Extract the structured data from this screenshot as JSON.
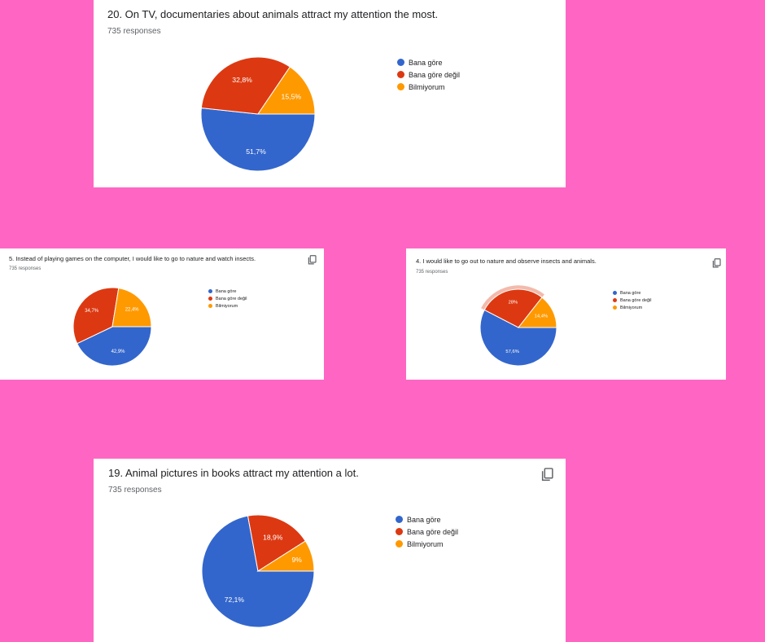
{
  "colors": {
    "background": "#ff66c4",
    "card": "#ffffff",
    "series": [
      "#3366cc",
      "#dc3912",
      "#ff9900"
    ]
  },
  "icons": {
    "copy": "copy-icon"
  },
  "chart_data": [
    {
      "type": "pie",
      "title": "20. On TV, documentaries about animals attract my attention the most.",
      "responses": "735 responses",
      "has_copy_icon": false,
      "categories": [
        "Bana göre",
        "Bana göre değil",
        "Bilmiyorum"
      ],
      "values": [
        51.7,
        32.8,
        15.5
      ],
      "labels": [
        "51,7%",
        "32,8%",
        "15,5%"
      ],
      "legend": "right"
    },
    {
      "type": "pie",
      "title": "5. Instead of playing games on the computer, I would like to go to nature and watch insects.",
      "responses": "735 responses",
      "has_copy_icon": true,
      "categories": [
        "Bana göre",
        "Bana göre değil",
        "Bilmiyorum"
      ],
      "values": [
        42.9,
        34.7,
        22.4
      ],
      "labels": [
        "42,9%",
        "34,7%",
        "22,4%"
      ],
      "legend": "right"
    },
    {
      "type": "pie",
      "title": "4. I would like to go out to nature and observe insects and animals.",
      "responses": "735 responses",
      "has_copy_icon": true,
      "categories": [
        "Bana göre",
        "Bana göre değil",
        "Bilmiyorum"
      ],
      "values": [
        57.6,
        28,
        14.4
      ],
      "labels": [
        "57,6%",
        "28%",
        "14,4%"
      ],
      "highlighted_slice": 1,
      "legend": "right"
    },
    {
      "type": "pie",
      "title": "19. Animal pictures in books attract my attention a lot.",
      "responses": "735 responses",
      "has_copy_icon": true,
      "categories": [
        "Bana göre",
        "Bana göre değil",
        "Bilmiyorum"
      ],
      "values": [
        72.1,
        18.9,
        9
      ],
      "labels": [
        "72,1%",
        "18,9%",
        "9%"
      ],
      "legend": "right"
    }
  ]
}
